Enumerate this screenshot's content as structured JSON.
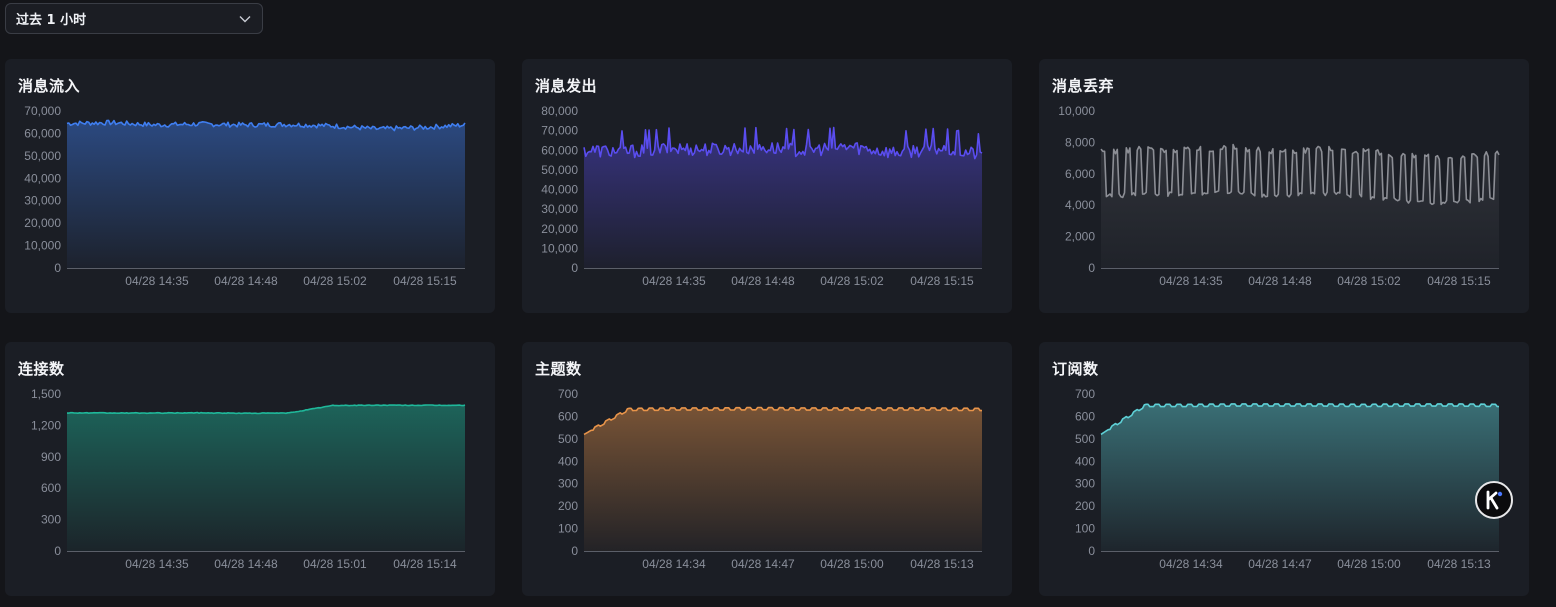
{
  "time_range": {
    "selected": "过去 1 小时"
  },
  "chart_data": [
    {
      "id": "inflow",
      "type": "area",
      "title": "消息流入",
      "color": "#3f7ef0",
      "ylim": [
        0,
        70000
      ],
      "yticks": [
        "0",
        "10,000",
        "20,000",
        "30,000",
        "40,000",
        "50,000",
        "60,000",
        "70,000"
      ],
      "xticks": [
        "04/28 14:35",
        "04/28 14:48",
        "04/28 15:02",
        "04/28 15:15"
      ],
      "x": [
        "04/28 14:21",
        "04/28 14:28",
        "04/28 14:35",
        "04/28 14:42",
        "04/28 14:48",
        "04/28 14:55",
        "04/28 15:02",
        "04/28 15:08",
        "04/28 15:15",
        "04/28 15:21"
      ],
      "series": [
        {
          "values": [
            64500,
            64800,
            63800,
            64200,
            63800,
            64000,
            63400,
            62000,
            62600,
            63800
          ]
        }
      ]
    },
    {
      "id": "outflow",
      "type": "area",
      "title": "消息发出",
      "color": "#5a4df0",
      "ylim": [
        0,
        80000
      ],
      "yticks": [
        "0",
        "10,000",
        "20,000",
        "30,000",
        "40,000",
        "50,000",
        "60,000",
        "70,000",
        "80,000"
      ],
      "xticks": [
        "04/28 14:35",
        "04/28 14:48",
        "04/28 15:02",
        "04/28 15:15"
      ],
      "x": [
        "04/28 14:21",
        "04/28 14:28",
        "04/28 14:35",
        "04/28 14:42",
        "04/28 14:48",
        "04/28 14:55",
        "04/28 15:02",
        "04/28 15:08",
        "04/28 15:15",
        "04/28 15:21"
      ],
      "series": [
        {
          "values": [
            60000,
            59500,
            61000,
            60500,
            61500,
            60000,
            62000,
            59000,
            61000,
            58000
          ]
        }
      ]
    },
    {
      "id": "dropped",
      "type": "line",
      "title": "消息丢弃",
      "color": "#8c8e95",
      "ylim": [
        0,
        10000
      ],
      "yticks": [
        "0",
        "2,000",
        "4,000",
        "6,000",
        "8,000",
        "10,000"
      ],
      "xticks": [
        "04/28 14:35",
        "04/28 14:48",
        "04/28 15:02",
        "04/28 15:15"
      ],
      "x": [
        "04/28 14:21",
        "04/28 14:28",
        "04/28 14:35",
        "04/28 14:42",
        "04/28 14:48",
        "04/28 14:55",
        "04/28 15:02",
        "04/28 15:08",
        "04/28 15:15",
        "04/28 15:21"
      ],
      "series": [
        {
          "values": [
            6000,
            6200,
            6100,
            6300,
            6000,
            6200,
            6000,
            5700,
            5600,
            5900
          ]
        }
      ]
    },
    {
      "id": "connections",
      "type": "area",
      "title": "连接数",
      "color": "#1fb89a",
      "ylim": [
        0,
        1500
      ],
      "yticks": [
        "0",
        "300",
        "600",
        "900",
        "1,200",
        "1,500"
      ],
      "xticks": [
        "04/28 14:35",
        "04/28 14:48",
        "04/28 15:01",
        "04/28 15:14"
      ],
      "x": [
        "04/28 14:21",
        "04/28 14:28",
        "04/28 14:35",
        "04/28 14:42",
        "04/28 14:48",
        "04/28 14:55",
        "04/28 15:01",
        "04/28 15:08",
        "04/28 15:14",
        "04/28 15:20"
      ],
      "series": [
        {
          "values": [
            1320,
            1318,
            1318,
            1320,
            1316,
            1318,
            1390,
            1393,
            1392,
            1392
          ]
        }
      ]
    },
    {
      "id": "topics",
      "type": "area",
      "title": "主题数",
      "color": "#e8944a",
      "ylim": [
        0,
        700
      ],
      "yticks": [
        "0",
        "100",
        "200",
        "300",
        "400",
        "500",
        "600",
        "700"
      ],
      "xticks": [
        "04/28 14:34",
        "04/28 14:47",
        "04/28 15:00",
        "04/28 15:13"
      ],
      "x": [
        "04/28 14:20",
        "04/28 14:27",
        "04/28 14:34",
        "04/28 14:40",
        "04/28 14:47",
        "04/28 14:53",
        "04/28 15:00",
        "04/28 15:07",
        "04/28 15:13",
        "04/28 15:20"
      ],
      "series": [
        {
          "values": [
            520,
            630,
            632,
            632,
            634,
            632,
            632,
            632,
            632,
            630
          ]
        }
      ]
    },
    {
      "id": "subscriptions",
      "type": "area",
      "title": "订阅数",
      "color": "#5ed0d6",
      "ylim": [
        0,
        700
      ],
      "yticks": [
        "0",
        "100",
        "200",
        "300",
        "400",
        "500",
        "600",
        "700"
      ],
      "xticks": [
        "04/28 14:34",
        "04/28 14:47",
        "04/28 15:00",
        "04/28 15:13"
      ],
      "x": [
        "04/28 14:20",
        "04/28 14:27",
        "04/28 14:34",
        "04/28 14:40",
        "04/28 14:47",
        "04/28 14:53",
        "04/28 15:00",
        "04/28 15:07",
        "04/28 15:13",
        "04/28 15:20"
      ],
      "series": [
        {
          "values": [
            520,
            648,
            648,
            650,
            650,
            650,
            648,
            650,
            650,
            648
          ]
        }
      ]
    }
  ]
}
